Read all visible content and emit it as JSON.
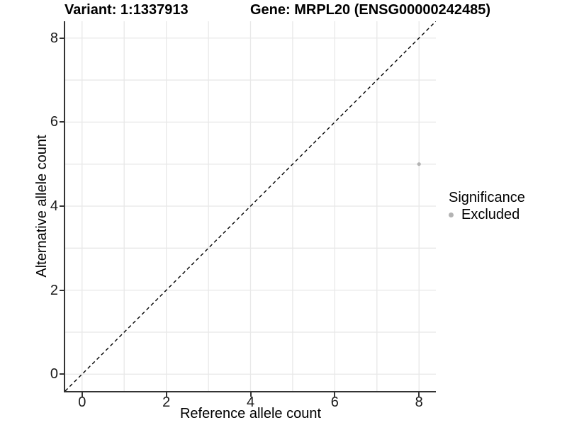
{
  "chart_data": {
    "type": "scatter",
    "title_left": "Variant: 1:1337913",
    "title_right": "Gene: MRPL20 (ENSG00000242485)",
    "xlabel": "Reference allele count",
    "ylabel": "Alternative allele count",
    "xlim": [
      -0.4,
      8.4
    ],
    "ylim": [
      -0.4,
      8.4
    ],
    "xticks": [
      0,
      2,
      4,
      6,
      8
    ],
    "yticks": [
      0,
      2,
      4,
      6,
      8
    ],
    "grid_x": [
      0,
      1,
      2,
      3,
      4,
      5,
      6,
      7,
      8
    ],
    "grid_y": [
      0,
      1,
      2,
      3,
      4,
      5,
      6,
      7,
      8
    ],
    "grid_on": true,
    "identity_line": {
      "style": "dashed",
      "from": [
        -0.4,
        -0.4
      ],
      "to": [
        8.4,
        8.4
      ],
      "color": "#000000"
    },
    "series": [
      {
        "name": "Excluded",
        "color": "#b3b3b3",
        "point_radius": 2.6,
        "points": [
          [
            8,
            5
          ]
        ]
      }
    ],
    "legend": {
      "position": "right",
      "title": "Significance",
      "items": [
        {
          "label": "Excluded",
          "color": "#b3b3b3"
        }
      ]
    },
    "colors": {
      "grid": "#e8e8e8",
      "axis": "#333333",
      "tick_label": "#1a1a1a",
      "text": "#000000"
    }
  }
}
